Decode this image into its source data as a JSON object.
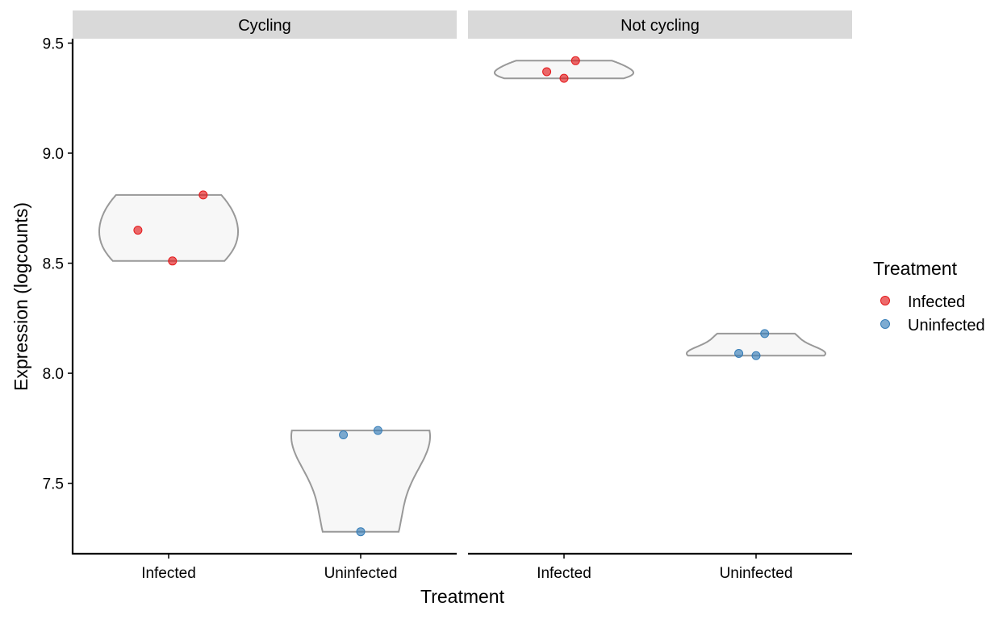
{
  "chart_data": {
    "type": "violin",
    "xlabel": "Treatment",
    "ylabel": "Expression (logcounts)",
    "ylim": [
      7.18,
      9.52
    ],
    "yticks": [
      7.5,
      8.0,
      8.5,
      9.0,
      9.5
    ],
    "ytick_labels": [
      "7.5",
      "8.0",
      "8.5",
      "9.0",
      "9.5"
    ],
    "categories": [
      "Infected",
      "Uninfected"
    ],
    "grid": false,
    "legend": {
      "title": "Treatment",
      "position": "right",
      "entries": [
        {
          "name": "Infected",
          "color": "#E41A1C"
        },
        {
          "name": "Uninfected",
          "color": "#377EB8"
        }
      ]
    },
    "panels": [
      {
        "label": "Cycling",
        "violins": [
          {
            "category": "Infected",
            "color": "#E41A1C",
            "points": [
              [
                -0.32,
                8.65
              ],
              [
                0.04,
                8.51
              ],
              [
                0.36,
                8.81
              ]
            ]
          },
          {
            "category": "Uninfected",
            "color": "#377EB8",
            "points": [
              [
                -0.18,
                7.72
              ],
              [
                0.0,
                7.28
              ],
              [
                0.18,
                7.74
              ]
            ]
          }
        ]
      },
      {
        "label": "Not cycling",
        "violins": [
          {
            "category": "Infected",
            "color": "#E41A1C",
            "points": [
              [
                -0.18,
                9.37
              ],
              [
                0.0,
                9.34
              ],
              [
                0.12,
                9.42
              ]
            ]
          },
          {
            "category": "Uninfected",
            "color": "#377EB8",
            "points": [
              [
                -0.18,
                8.09
              ],
              [
                0.0,
                8.08
              ],
              [
                0.09,
                8.18
              ]
            ]
          }
        ]
      }
    ]
  }
}
